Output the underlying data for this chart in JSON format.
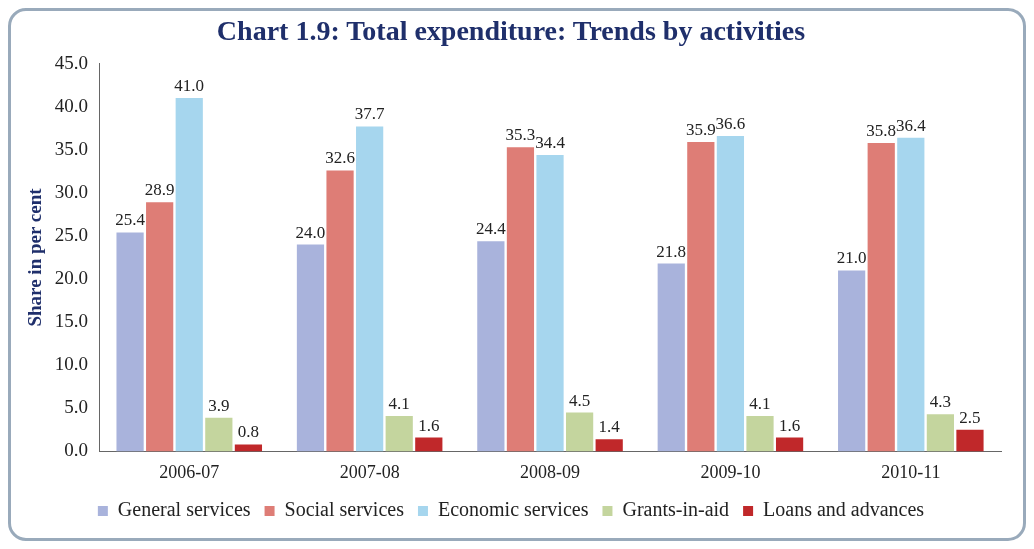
{
  "chart_data": {
    "type": "bar",
    "title": "Chart 1.9: Total expenditure: Trends by activities",
    "ylabel": "Share in per cent",
    "categories": [
      "2006-07",
      "2007-08",
      "2008-09",
      "2009-10",
      "2010-11"
    ],
    "series": [
      {
        "name": "General services",
        "color": "#a9b3dc",
        "values": [
          25.4,
          24.0,
          24.4,
          21.8,
          21.0
        ],
        "value_labels": [
          "25.4",
          "24.0",
          "24.4",
          "21.8",
          "21.0"
        ]
      },
      {
        "name": "Social services",
        "color": "#de7d76",
        "values": [
          28.9,
          32.6,
          35.3,
          35.9,
          35.8
        ],
        "value_labels": [
          "28.9",
          "32.6",
          "35.3",
          "35.9",
          "35.8"
        ]
      },
      {
        "name": "Economic services",
        "color": "#a6d6ee",
        "values": [
          41.0,
          37.7,
          34.4,
          36.6,
          36.4
        ],
        "value_labels": [
          "41.0",
          "37.7",
          "34.4",
          "36.6",
          "36.4"
        ]
      },
      {
        "name": "Grants-in-aid",
        "color": "#c4d59e",
        "values": [
          3.9,
          4.1,
          4.5,
          4.1,
          4.3
        ],
        "value_labels": [
          "3.9",
          "4.1",
          "4.5",
          "4.1",
          "4.3"
        ]
      },
      {
        "name": "Loans and advances",
        "color": "#c0282a",
        "values": [
          0.8,
          1.6,
          1.4,
          1.6,
          2.5
        ],
        "value_labels": [
          "0.8",
          "1.6",
          "1.4",
          "1.6",
          "2.5"
        ]
      }
    ],
    "ylim": [
      0,
      45
    ],
    "yticks": [
      {
        "value": 0,
        "label": "0.0"
      },
      {
        "value": 5,
        "label": "5.0"
      },
      {
        "value": 10,
        "label": "10.0"
      },
      {
        "value": 15,
        "label": "15.0"
      },
      {
        "value": 20,
        "label": "20.0"
      },
      {
        "value": 25,
        "label": "25.0"
      },
      {
        "value": 30,
        "label": "30.0"
      },
      {
        "value": 35,
        "label": "35.0"
      },
      {
        "value": 40,
        "label": "40.0"
      },
      {
        "value": 45,
        "label": "45.0"
      }
    ],
    "legend": "bottom"
  }
}
